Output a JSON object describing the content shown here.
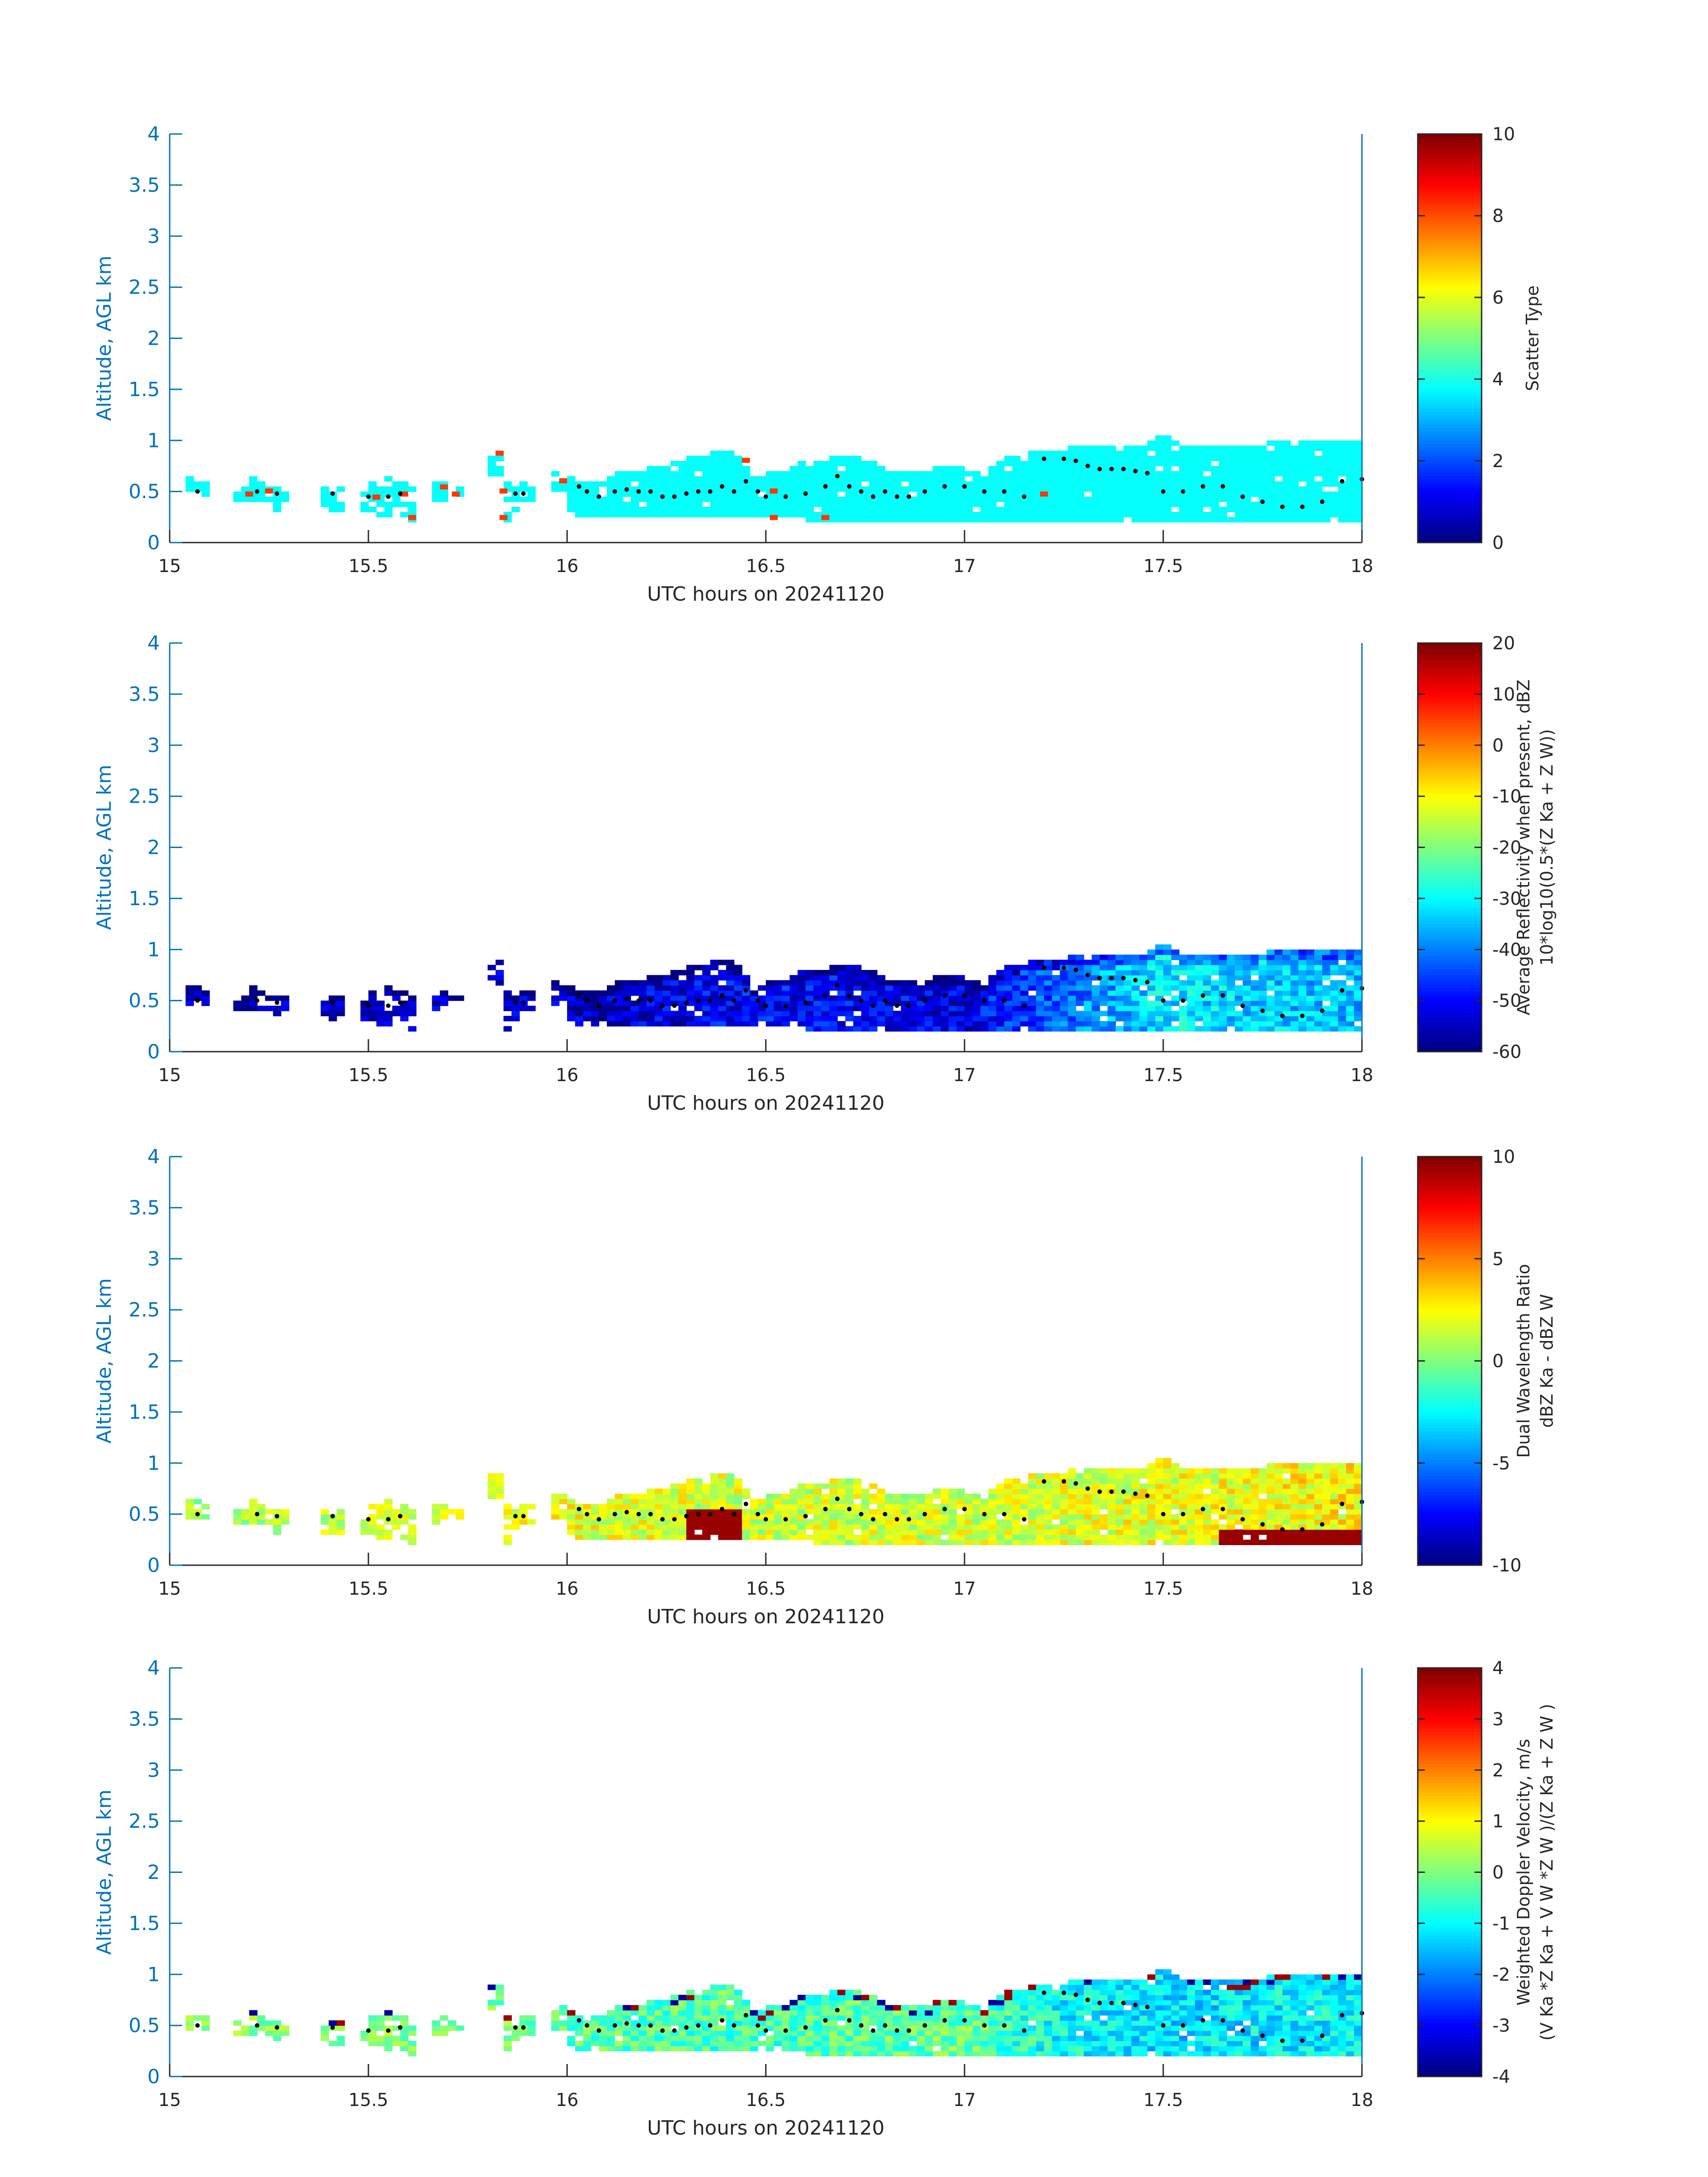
{
  "figure": {
    "date_label": "UTC hours on 20241120"
  },
  "chart_data": [
    {
      "type": "heatmap",
      "xlabel": "UTC hours on 20241120",
      "ylabel": "Altitude, AGL km",
      "xlim": [
        15,
        18
      ],
      "ylim": [
        0,
        4
      ],
      "xticks": [
        "15",
        "15.5",
        "16",
        "16.5",
        "17",
        "17.5",
        "18"
      ],
      "yticks": [
        "0",
        "0.5",
        "1",
        "1.5",
        "2",
        "2.5",
        "3",
        "3.5",
        "4"
      ],
      "colorbar": {
        "label_lines": [
          "Scatter Type"
        ],
        "range": [
          0,
          10
        ],
        "ticks": [
          "0",
          "2",
          "4",
          "6",
          "8",
          "10"
        ]
      },
      "colormap": "jet",
      "dominant_value": 3.8,
      "outliers": [
        {
          "x": 15.2,
          "y": 0.45,
          "value": 8.2
        },
        {
          "x": 15.25,
          "y": 0.48,
          "value": 8.2
        },
        {
          "x": 15.52,
          "y": 0.42,
          "value": 8.2
        },
        {
          "x": 15.59,
          "y": 0.45,
          "value": 8.2
        },
        {
          "x": 15.61,
          "y": 0.22,
          "value": 8.2
        },
        {
          "x": 15.69,
          "y": 0.52,
          "value": 8.2
        },
        {
          "x": 15.72,
          "y": 0.45,
          "value": 8.2
        },
        {
          "x": 15.83,
          "y": 0.85,
          "value": 8.2
        },
        {
          "x": 15.84,
          "y": 0.48,
          "value": 8.2
        },
        {
          "x": 15.84,
          "y": 0.22,
          "value": 8.2
        },
        {
          "x": 15.99,
          "y": 0.58,
          "value": 8.2
        },
        {
          "x": 16.45,
          "y": 0.78,
          "value": 8.2
        },
        {
          "x": 16.52,
          "y": 0.48,
          "value": 8.2
        },
        {
          "x": 16.52,
          "y": 0.22,
          "value": 8.2
        },
        {
          "x": 16.65,
          "y": 0.22,
          "value": 8.2
        },
        {
          "x": 17.2,
          "y": 0.45,
          "value": 8.2
        }
      ]
    },
    {
      "type": "heatmap",
      "xlabel": "UTC hours on 20241120",
      "ylabel": "Altitude, AGL km",
      "xlim": [
        15,
        18
      ],
      "ylim": [
        0,
        4
      ],
      "xticks": [
        "15",
        "15.5",
        "16",
        "16.5",
        "17",
        "17.5",
        "18"
      ],
      "yticks": [
        "0",
        "0.5",
        "1",
        "1.5",
        "2",
        "2.5",
        "3",
        "3.5",
        "4"
      ],
      "colorbar": {
        "label_lines": [
          "Average Reflectivity when present, dBZ",
          "10*log10(0.5*(Z Ka + Z W))"
        ],
        "range": [
          -60,
          20
        ],
        "ticks": [
          "-60",
          "-50",
          "-40",
          "-30",
          "-20",
          "-10",
          "0",
          "10",
          "20"
        ]
      },
      "colormap": "jet",
      "value_trend": {
        "x": [
          15,
          16,
          16.5,
          17,
          17.25,
          17.5,
          18
        ],
        "value": [
          -57,
          -55,
          -50,
          -52,
          -42,
          -32,
          -36
        ]
      }
    },
    {
      "type": "heatmap",
      "xlabel": "UTC hours on 20241120",
      "ylabel": "Altitude, AGL km",
      "xlim": [
        15,
        18
      ],
      "ylim": [
        0,
        4
      ],
      "xticks": [
        "15",
        "15.5",
        "16",
        "16.5",
        "17",
        "17.5",
        "18"
      ],
      "yticks": [
        "0",
        "0.5",
        "1",
        "1.5",
        "2",
        "2.5",
        "3",
        "3.5",
        "4"
      ],
      "colorbar": {
        "label_lines": [
          "Dual Wavelength Ratio",
          "dBZ Ka - dBZ W"
        ],
        "range": [
          -10,
          10
        ],
        "ticks": [
          "-10",
          "-5",
          "0",
          "5",
          "10"
        ]
      },
      "colormap": "jet",
      "value_trend": {
        "x": [
          15,
          16,
          16.5,
          17,
          17.5,
          18
        ],
        "value": [
          0,
          2,
          1.5,
          1.5,
          2,
          2.5
        ]
      }
    },
    {
      "type": "heatmap",
      "xlabel": "UTC hours on 20241120",
      "ylabel": "Altitude, AGL km",
      "xlim": [
        15,
        18
      ],
      "ylim": [
        0,
        4
      ],
      "xticks": [
        "15",
        "15.5",
        "16",
        "16.5",
        "17",
        "17.5",
        "18"
      ],
      "yticks": [
        "0",
        "0.5",
        "1",
        "1.5",
        "2",
        "2.5",
        "3",
        "3.5",
        "4"
      ],
      "colorbar": {
        "label_lines": [
          "Weighted Doppler Velocity, m/s",
          "(V Ka *Z Ka + V W *Z W )/(Z Ka + Z W )"
        ],
        "range": [
          -4,
          4
        ],
        "ticks": [
          "-4",
          "-3",
          "-2",
          "-1",
          "0",
          "1",
          "2",
          "3",
          "4"
        ]
      },
      "colormap": "jet",
      "value_trend": {
        "x": [
          15,
          16,
          16.5,
          17,
          17.25,
          17.5,
          18
        ],
        "value": [
          0,
          -0.3,
          -0.5,
          -0.2,
          -1,
          -1.3,
          -1
        ]
      }
    }
  ],
  "echo_profile": {
    "x": [
      15.06,
      15.08,
      15.18,
      15.2,
      15.22,
      15.24,
      15.26,
      15.28,
      15.4,
      15.42,
      15.49,
      15.5,
      15.52,
      15.54,
      15.56,
      15.58,
      15.6,
      15.68,
      15.7,
      15.72,
      15.82,
      15.84,
      15.86,
      15.88,
      15.9,
      15.98,
      16,
      16.02,
      16.04,
      16.06,
      16.08,
      16.1,
      16.12,
      16.15,
      16.2,
      16.25,
      16.3,
      16.35,
      16.4,
      16.43,
      16.46,
      16.48,
      16.5,
      16.53,
      16.56,
      16.6,
      16.65,
      16.7,
      16.75,
      16.8,
      16.85,
      16.9,
      16.95,
      17,
      17.05,
      17.1,
      17.15,
      17.2,
      17.25,
      17.3,
      17.35,
      17.4,
      17.45,
      17.5,
      17.55,
      17.6,
      17.65,
      17.7,
      17.75,
      17.8,
      17.85,
      17.9,
      17.95,
      18
    ],
    "bot": [
      0.45,
      0.45,
      0.4,
      0.4,
      0.4,
      0.4,
      0.35,
      0.4,
      0.35,
      0.35,
      0.35,
      0.32,
      0.3,
      0.3,
      0.35,
      0.25,
      0.2,
      0.4,
      0.45,
      0.45,
      0.7,
      0.2,
      0.35,
      0.4,
      0.4,
      0.45,
      0.35,
      0.3,
      0.3,
      0.3,
      0.3,
      0.3,
      0.3,
      0.3,
      0.3,
      0.3,
      0.3,
      0.3,
      0.3,
      0.28,
      0.3,
      0.3,
      0.3,
      0.25,
      0.25,
      0.25,
      0.2,
      0.2,
      0.2,
      0.2,
      0.2,
      0.2,
      0.2,
      0.2,
      0.2,
      0.2,
      0.2,
      0.2,
      0.2,
      0.2,
      0.2,
      0.2,
      0.2,
      0.2,
      0.2,
      0.2,
      0.2,
      0.2,
      0.2,
      0.2,
      0.2,
      0.2,
      0.2,
      0.2
    ],
    "top": [
      0.65,
      0.6,
      0.55,
      0.65,
      0.6,
      0.55,
      0.55,
      0.55,
      0.55,
      0.55,
      0.5,
      0.6,
      0.6,
      0.65,
      0.6,
      0.6,
      0.55,
      0.6,
      0.55,
      0.55,
      0.9,
      0.6,
      0.55,
      0.6,
      0.6,
      0.7,
      0.65,
      0.6,
      0.55,
      0.6,
      0.6,
      0.6,
      0.65,
      0.7,
      0.7,
      0.75,
      0.8,
      0.85,
      0.9,
      0.85,
      0.7,
      0.6,
      0.65,
      0.7,
      0.7,
      0.8,
      0.8,
      0.85,
      0.8,
      0.7,
      0.7,
      0.65,
      0.75,
      0.7,
      0.65,
      0.8,
      0.85,
      0.9,
      0.9,
      0.95,
      0.95,
      0.95,
      0.95,
      1.05,
      0.95,
      0.95,
      0.95,
      0.9,
      0.95,
      1.0,
      1.0,
      0.95,
      1.0,
      0.95
    ]
  },
  "tracer_points": {
    "x": [
      15.07,
      15.22,
      15.27,
      15.41,
      15.5,
      15.55,
      15.58,
      15.87,
      15.89,
      16.03,
      16.05,
      16.08,
      16.12,
      16.15,
      16.18,
      16.21,
      16.24,
      16.27,
      16.3,
      16.33,
      16.36,
      16.39,
      16.42,
      16.45,
      16.48,
      16.5,
      16.55,
      16.6,
      16.65,
      16.68,
      16.71,
      16.74,
      16.77,
      16.8,
      16.83,
      16.86,
      16.9,
      16.95,
      17.0,
      17.05,
      17.1,
      17.15,
      17.2,
      17.25,
      17.28,
      17.31,
      17.34,
      17.37,
      17.4,
      17.43,
      17.46,
      17.5,
      17.55,
      17.6,
      17.65,
      17.7,
      17.75,
      17.8,
      17.85,
      17.9,
      17.95,
      18.0
    ],
    "y": [
      0.5,
      0.5,
      0.48,
      0.48,
      0.45,
      0.45,
      0.48,
      0.48,
      0.48,
      0.55,
      0.5,
      0.45,
      0.5,
      0.52,
      0.5,
      0.5,
      0.45,
      0.45,
      0.48,
      0.5,
      0.5,
      0.55,
      0.5,
      0.6,
      0.5,
      0.45,
      0.45,
      0.48,
      0.55,
      0.65,
      0.55,
      0.5,
      0.45,
      0.5,
      0.45,
      0.45,
      0.5,
      0.55,
      0.55,
      0.5,
      0.5,
      0.45,
      0.82,
      0.82,
      0.8,
      0.75,
      0.72,
      0.72,
      0.72,
      0.7,
      0.68,
      0.5,
      0.5,
      0.55,
      0.55,
      0.45,
      0.4,
      0.35,
      0.35,
      0.4,
      0.6,
      0.62
    ]
  }
}
